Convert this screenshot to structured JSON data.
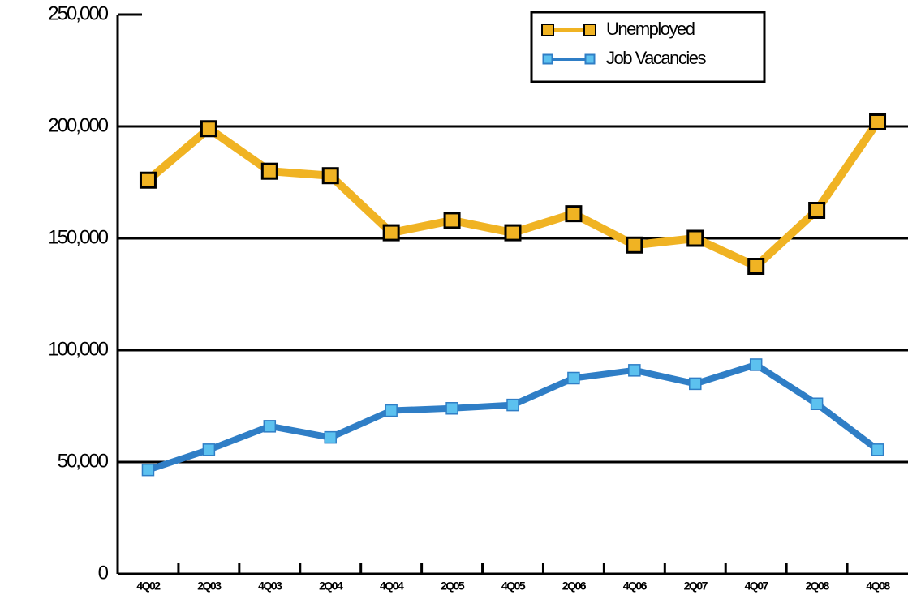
{
  "chart_data": {
    "type": "line",
    "categories": [
      "4Q02",
      "2Q03",
      "4Q03",
      "2Q04",
      "4Q04",
      "2Q05",
      "4Q05",
      "2Q06",
      "4Q06",
      "2Q07",
      "4Q07",
      "2Q08",
      "4Q08"
    ],
    "series": [
      {
        "name": "Unemployed",
        "color": "#f0b323",
        "marker_color": "#f0b323",
        "values": [
          176000,
          199000,
          180000,
          178000,
          152500,
          158000,
          152500,
          161000,
          147000,
          150000,
          137500,
          162500,
          202000
        ]
      },
      {
        "name": "Job Vacancies",
        "color": "#2f7ec6",
        "marker_color": "#5cc1ef",
        "values": [
          46500,
          55500,
          66000,
          61000,
          73000,
          74000,
          75500,
          87500,
          91000,
          85000,
          93500,
          76000,
          55500
        ]
      }
    ],
    "ylim": [
      0,
      250000
    ],
    "yticks": [
      0,
      {
        "value": 50000,
        "label": "50,000"
      },
      {
        "value": 100000,
        "label": "100,000"
      },
      {
        "value": 150000,
        "label": "150,000"
      },
      {
        "value": 200000,
        "label": "200,000"
      },
      {
        "value": 250000,
        "label": "250,000"
      }
    ],
    "grid": true,
    "legend": "top-right"
  }
}
